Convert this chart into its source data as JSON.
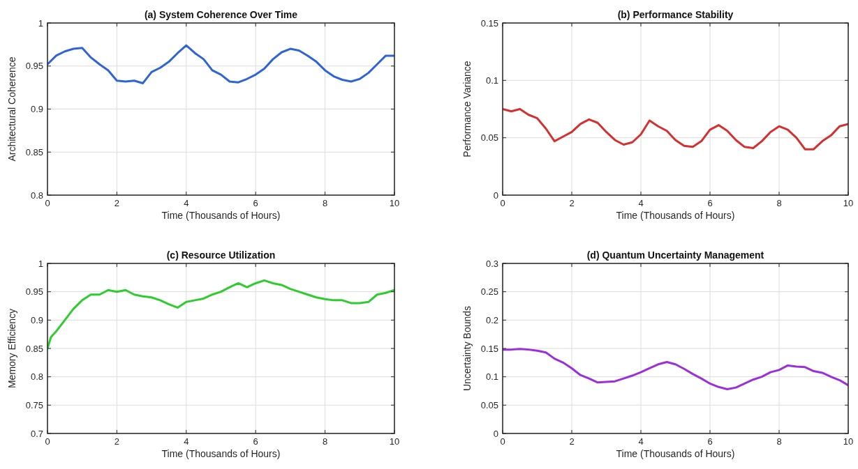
{
  "chart_data": [
    {
      "type": "line",
      "title": "(a) System Coherence Over Time",
      "xlabel": "Time (Thousands of Hours)",
      "ylabel": "Architectural Coherence",
      "xlim": [
        0,
        10
      ],
      "xticks": [
        0,
        2,
        4,
        6,
        8,
        10
      ],
      "ylim": [
        0.8,
        1
      ],
      "yticks": [
        0.8,
        0.85,
        0.9,
        0.95,
        1
      ],
      "grid": true,
      "x": [
        0,
        0.25,
        0.5,
        0.75,
        1,
        1.25,
        1.5,
        1.75,
        2,
        2.25,
        2.5,
        2.75,
        3,
        3.25,
        3.5,
        3.75,
        4,
        4.25,
        4.5,
        4.75,
        5,
        5.25,
        5.5,
        5.75,
        6,
        6.25,
        6.5,
        6.75,
        7,
        7.25,
        7.5,
        7.75,
        8,
        8.25,
        8.5,
        8.75,
        9,
        9.25,
        9.5,
        9.75,
        10
      ],
      "series": [
        {
          "color": "#2e64d6",
          "values": [
            0.952,
            0.962,
            0.967,
            0.97,
            0.971,
            0.96,
            0.952,
            0.945,
            0.933,
            0.932,
            0.933,
            0.93,
            0.943,
            0.948,
            0.955,
            0.965,
            0.974,
            0.965,
            0.958,
            0.945,
            0.94,
            0.932,
            0.931,
            0.935,
            0.94,
            0.947,
            0.958,
            0.966,
            0.97,
            0.968,
            0.962,
            0.955,
            0.945,
            0.938,
            0.934,
            0.932,
            0.935,
            0.942,
            0.952,
            0.962,
            0.962
          ]
        }
      ]
    },
    {
      "type": "line",
      "title": "(b) Performance Stability",
      "xlabel": "Time (Thousands of Hours)",
      "ylabel": "Performance Variance",
      "xlim": [
        0,
        10
      ],
      "xticks": [
        0,
        2,
        4,
        6,
        8,
        10
      ],
      "ylim": [
        0,
        0.15
      ],
      "yticks": [
        0,
        0.05,
        0.1,
        0.15
      ],
      "grid": true,
      "x": [
        0,
        0.25,
        0.5,
        0.75,
        1,
        1.25,
        1.5,
        1.75,
        2,
        2.25,
        2.5,
        2.75,
        3,
        3.25,
        3.5,
        3.75,
        4,
        4.25,
        4.5,
        4.75,
        5,
        5.25,
        5.5,
        5.75,
        6,
        6.25,
        6.5,
        6.75,
        7,
        7.25,
        7.5,
        7.75,
        8,
        8.25,
        8.5,
        8.75,
        9,
        9.25,
        9.5,
        9.75,
        10
      ],
      "series": [
        {
          "color": "#d43030",
          "values": [
            0.075,
            0.073,
            0.075,
            0.07,
            0.067,
            0.058,
            0.047,
            0.051,
            0.055,
            0.062,
            0.066,
            0.063,
            0.055,
            0.048,
            0.044,
            0.046,
            0.053,
            0.065,
            0.06,
            0.056,
            0.048,
            0.043,
            0.042,
            0.047,
            0.057,
            0.061,
            0.056,
            0.048,
            0.042,
            0.041,
            0.047,
            0.055,
            0.06,
            0.057,
            0.05,
            0.04,
            0.04,
            0.047,
            0.052,
            0.06,
            0.062
          ]
        }
      ]
    },
    {
      "type": "line",
      "title": "(c) Resource Utilization",
      "xlabel": "Time (Thousands of Hours)",
      "ylabel": "Memory Efficiency",
      "xlim": [
        0,
        10
      ],
      "xticks": [
        0,
        2,
        4,
        6,
        8,
        10
      ],
      "ylim": [
        0.7,
        1
      ],
      "yticks": [
        0.7,
        0.75,
        0.8,
        0.85,
        0.9,
        0.95,
        1
      ],
      "grid": true,
      "x": [
        0,
        0.1,
        0.25,
        0.5,
        0.75,
        1,
        1.25,
        1.5,
        1.75,
        2,
        2.25,
        2.5,
        2.75,
        3,
        3.25,
        3.5,
        3.75,
        4,
        4.25,
        4.5,
        4.75,
        5,
        5.25,
        5.5,
        5.75,
        6,
        6.25,
        6.5,
        6.75,
        7,
        7.25,
        7.5,
        7.75,
        8,
        8.25,
        8.5,
        8.75,
        9,
        9.25,
        9.5,
        9.75,
        10
      ],
      "series": [
        {
          "color": "#2ecc2e",
          "values": [
            0.85,
            0.87,
            0.88,
            0.9,
            0.92,
            0.935,
            0.945,
            0.945,
            0.953,
            0.95,
            0.953,
            0.945,
            0.942,
            0.94,
            0.935,
            0.928,
            0.922,
            0.932,
            0.935,
            0.938,
            0.945,
            0.95,
            0.958,
            0.965,
            0.958,
            0.965,
            0.97,
            0.965,
            0.962,
            0.955,
            0.95,
            0.945,
            0.94,
            0.937,
            0.935,
            0.935,
            0.93,
            0.93,
            0.932,
            0.945,
            0.948,
            0.953
          ]
        }
      ]
    },
    {
      "type": "line",
      "title": "(d) Quantum Uncertainty Management",
      "xlabel": "Time (Thousands of Hours)",
      "ylabel": "Uncertainty Bounds",
      "xlim": [
        0,
        10
      ],
      "xticks": [
        0,
        2,
        4,
        6,
        8,
        10
      ],
      "ylim": [
        0,
        0.3
      ],
      "yticks": [
        0,
        0.05,
        0.1,
        0.15,
        0.2,
        0.25,
        0.3
      ],
      "grid": true,
      "x": [
        0,
        0.25,
        0.5,
        0.75,
        1,
        1.25,
        1.5,
        1.75,
        2,
        2.25,
        2.5,
        2.75,
        3,
        3.25,
        3.5,
        3.75,
        4,
        4.25,
        4.5,
        4.75,
        5,
        5.25,
        5.5,
        5.75,
        6,
        6.25,
        6.5,
        6.75,
        7,
        7.25,
        7.5,
        7.75,
        8,
        8.25,
        8.5,
        8.75,
        9,
        9.25,
        9.5,
        9.75,
        10
      ],
      "series": [
        {
          "color": "#9b30d9",
          "values": [
            0.148,
            0.148,
            0.149,
            0.148,
            0.146,
            0.143,
            0.132,
            0.125,
            0.115,
            0.103,
            0.097,
            0.09,
            0.091,
            0.092,
            0.097,
            0.102,
            0.108,
            0.115,
            0.122,
            0.126,
            0.122,
            0.114,
            0.105,
            0.097,
            0.088,
            0.082,
            0.078,
            0.081,
            0.088,
            0.095,
            0.1,
            0.108,
            0.112,
            0.12,
            0.118,
            0.117,
            0.11,
            0.107,
            0.1,
            0.094,
            0.085
          ]
        }
      ]
    }
  ]
}
